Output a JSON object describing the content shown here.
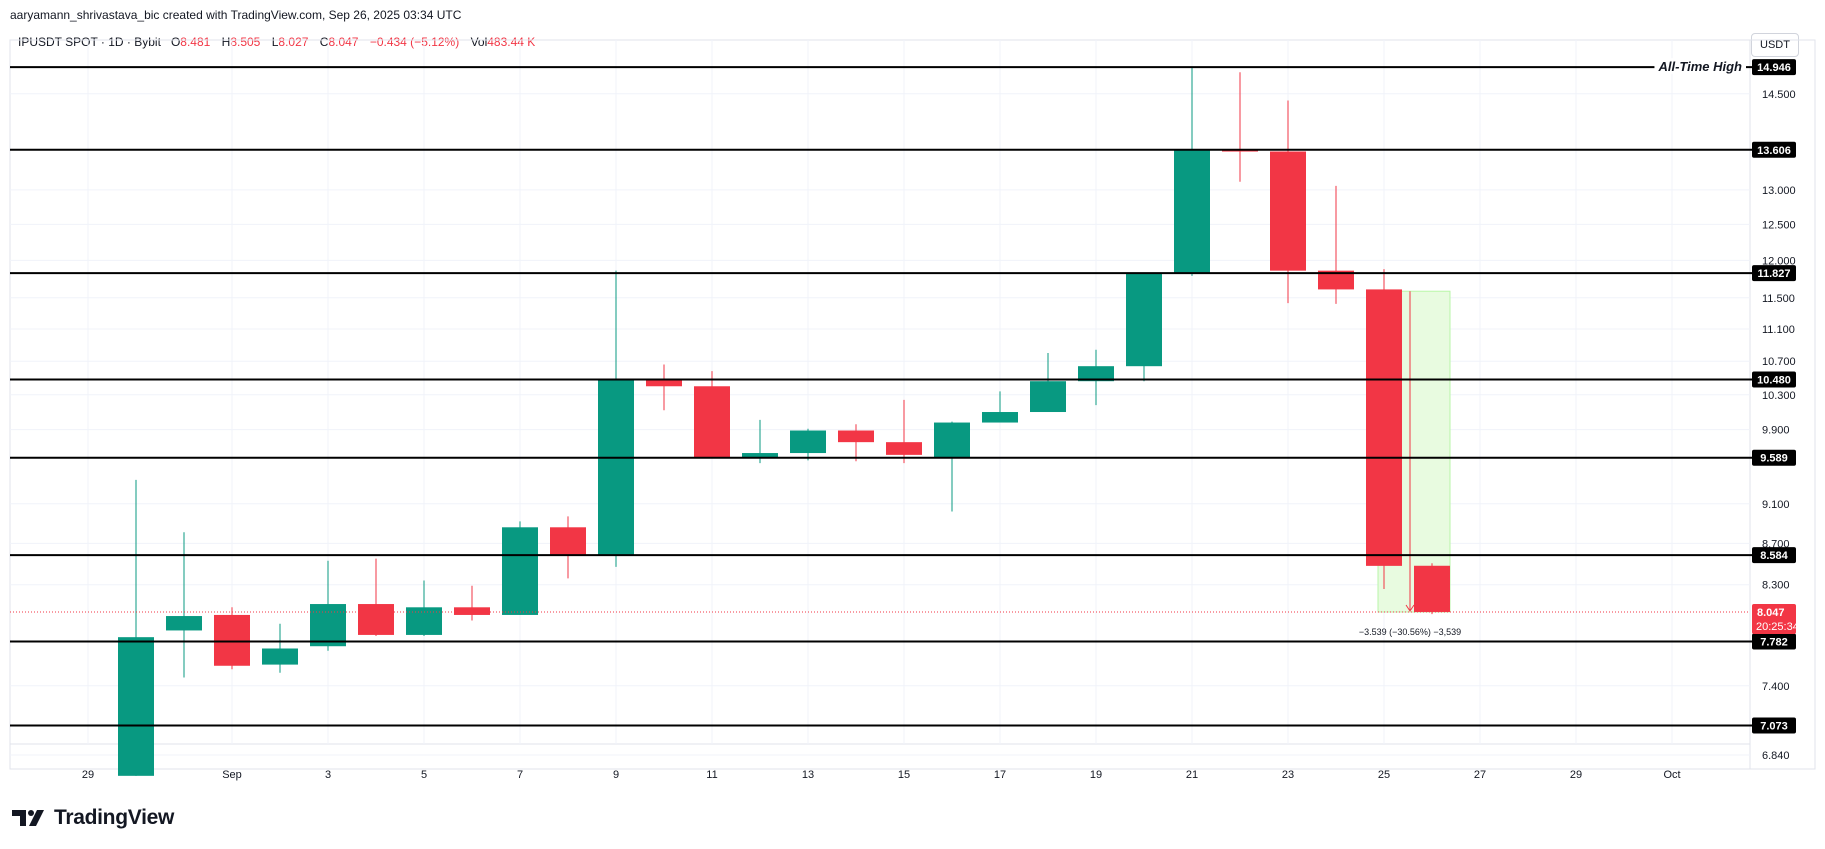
{
  "credit": "aaryamann_shrivastava_bic created with TradingView.com, Sep 26, 2025 03:34 UTC",
  "legend": {
    "symbol": "IPUSDT SPOT · 1D · Bybit",
    "open_label": "O",
    "open": "8.481",
    "high_label": "H",
    "high": "8.505",
    "low_label": "L",
    "low": "8.027",
    "close_label": "C",
    "close": "8.047",
    "change": "−0.434 (−5.12%)",
    "vol_label": "Vol",
    "vol": "483.44 K"
  },
  "currency": "USDT",
  "brand": {
    "name": "TradingView",
    "logo_icon": "tradingview-logo-icon"
  },
  "colors": {
    "up": "#089981",
    "down": "#f23645",
    "level": "#000000",
    "grid": "#f0f3fa",
    "measure_fill": "#e8fbe0",
    "measure_line": "#f23645"
  },
  "chart_data": {
    "type": "candlestick",
    "x_ticks": [
      "29",
      "Sep",
      "3",
      "5",
      "7",
      "9",
      "11",
      "13",
      "15",
      "17",
      "19",
      "21",
      "23",
      "25",
      "27",
      "29",
      "Oct"
    ],
    "y_ticks": [
      "14.500",
      "13.000",
      "12.500",
      "12.000",
      "11.500",
      "11.100",
      "10.700",
      "10.300",
      "9.900",
      "9.100",
      "8.700",
      "8.300",
      "7.400",
      "6.840"
    ],
    "candles": [
      {
        "date": "2025-08-30",
        "open": 6.68,
        "high": 9.35,
        "low": 6.68,
        "close": 7.82
      },
      {
        "date": "2025-08-31",
        "open": 7.88,
        "high": 8.81,
        "low": 7.47,
        "close": 8.01
      },
      {
        "date": "2025-09-01",
        "open": 8.02,
        "high": 8.09,
        "low": 7.54,
        "close": 7.57
      },
      {
        "date": "2025-09-02",
        "open": 7.58,
        "high": 7.94,
        "low": 7.51,
        "close": 7.72
      },
      {
        "date": "2025-09-03",
        "open": 7.74,
        "high": 8.53,
        "low": 7.7,
        "close": 8.12
      },
      {
        "date": "2025-09-04",
        "open": 8.12,
        "high": 8.55,
        "low": 7.83,
        "close": 7.84
      },
      {
        "date": "2025-09-05",
        "open": 7.84,
        "high": 8.34,
        "low": 7.83,
        "close": 8.09
      },
      {
        "date": "2025-09-06",
        "open": 8.09,
        "high": 8.29,
        "low": 7.97,
        "close": 8.02
      },
      {
        "date": "2025-09-07",
        "open": 8.02,
        "high": 8.92,
        "low": 8.02,
        "close": 8.86
      },
      {
        "date": "2025-09-08",
        "open": 8.86,
        "high": 8.97,
        "low": 8.36,
        "close": 8.58
      },
      {
        "date": "2025-09-09",
        "open": 8.58,
        "high": 11.86,
        "low": 8.47,
        "close": 10.48
      },
      {
        "date": "2025-09-10",
        "open": 10.48,
        "high": 10.66,
        "low": 10.12,
        "close": 10.4
      },
      {
        "date": "2025-09-11",
        "open": 10.4,
        "high": 10.58,
        "low": 9.59,
        "close": 9.59
      },
      {
        "date": "2025-09-12",
        "open": 9.59,
        "high": 10.01,
        "low": 9.53,
        "close": 9.64
      },
      {
        "date": "2025-09-13",
        "open": 9.64,
        "high": 9.91,
        "low": 9.56,
        "close": 9.89
      },
      {
        "date": "2025-09-14",
        "open": 9.89,
        "high": 9.96,
        "low": 9.55,
        "close": 9.76
      },
      {
        "date": "2025-09-15",
        "open": 9.76,
        "high": 10.24,
        "low": 9.53,
        "close": 9.62
      },
      {
        "date": "2025-09-16",
        "open": 9.59,
        "high": 9.99,
        "low": 9.02,
        "close": 9.98
      },
      {
        "date": "2025-09-17",
        "open": 9.98,
        "high": 10.34,
        "low": 9.98,
        "close": 10.1
      },
      {
        "date": "2025-09-18",
        "open": 10.1,
        "high": 10.8,
        "low": 10.12,
        "close": 10.46
      },
      {
        "date": "2025-09-19",
        "open": 10.46,
        "high": 10.84,
        "low": 10.18,
        "close": 10.64
      },
      {
        "date": "2025-09-20",
        "open": 10.64,
        "high": 11.83,
        "low": 10.46,
        "close": 11.83
      },
      {
        "date": "2025-09-21",
        "open": 11.83,
        "high": 14.94,
        "low": 11.79,
        "close": 13.61
      },
      {
        "date": "2025-09-22",
        "open": 13.61,
        "high": 14.86,
        "low": 13.12,
        "close": 13.58
      },
      {
        "date": "2025-09-23",
        "open": 13.58,
        "high": 14.39,
        "low": 11.43,
        "close": 11.86
      },
      {
        "date": "2025-09-24",
        "open": 11.86,
        "high": 13.06,
        "low": 11.42,
        "close": 11.61
      },
      {
        "date": "2025-09-25",
        "open": 11.61,
        "high": 11.88,
        "low": 8.26,
        "close": 8.48
      },
      {
        "date": "2025-09-26",
        "open": 8.481,
        "high": 8.505,
        "low": 8.027,
        "close": 8.047
      }
    ],
    "levels": [
      {
        "value": 14.946,
        "label": "14.946",
        "note": "All-Time High"
      },
      {
        "value": 13.606,
        "label": "13.606"
      },
      {
        "value": 11.827,
        "label": "11.827"
      },
      {
        "value": 10.48,
        "label": "10.480"
      },
      {
        "value": 9.589,
        "label": "9.589"
      },
      {
        "value": 8.584,
        "label": "8.584"
      },
      {
        "value": 7.782,
        "label": "7.782"
      },
      {
        "value": 7.073,
        "label": "7.073"
      }
    ],
    "last_price": {
      "value": 8.047,
      "label": "8.047",
      "countdown": "20:25:34"
    },
    "measure": {
      "from": 11.586,
      "to": 8.047,
      "label": "−3.539 (−30.56%) −3,539"
    },
    "y_scale": "log"
  }
}
